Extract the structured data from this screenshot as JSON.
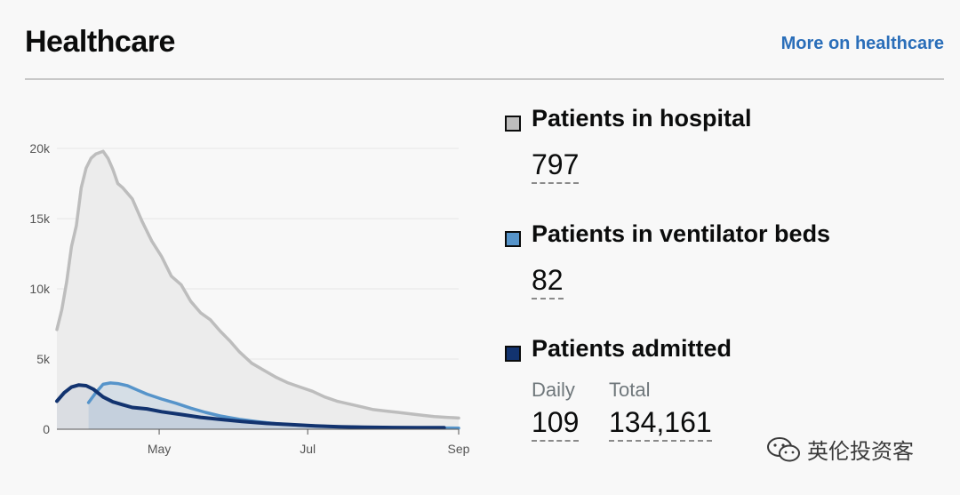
{
  "header": {
    "title": "Healthcare",
    "more_link": "More on healthcare"
  },
  "metrics": {
    "hospital": {
      "label": "Patients in hospital",
      "value": "797",
      "color": "#bdbdbd"
    },
    "ventilator": {
      "label": "Patients in ventilator beds",
      "value": "82",
      "color": "#5694ca"
    },
    "admitted": {
      "label": "Patients admitted",
      "daily_label": "Daily",
      "daily_value": "109",
      "total_label": "Total",
      "total_value": "134,161",
      "color": "#12336f"
    }
  },
  "watermark": {
    "text": "英伦投资客",
    "icon": "wechat-icon"
  },
  "chart_data": {
    "type": "area",
    "x_ticks": [
      "May",
      "Jul",
      "Sep"
    ],
    "y_ticks": [
      "0",
      "5k",
      "10k",
      "15k",
      "20k"
    ],
    "ylim": [
      0,
      20000
    ],
    "xlim": [
      "2020-03-20",
      "2020-09-01"
    ],
    "grid": true,
    "series": [
      {
        "name": "Patients in hospital",
        "color": "#bdbdbd",
        "points": [
          [
            "2020-03-20",
            7100
          ],
          [
            "2020-03-22",
            8500
          ],
          [
            "2020-03-24",
            10500
          ],
          [
            "2020-03-26",
            13000
          ],
          [
            "2020-03-28",
            14500
          ],
          [
            "2020-03-30",
            17200
          ],
          [
            "2020-04-01",
            18600
          ],
          [
            "2020-04-03",
            19300
          ],
          [
            "2020-04-05",
            19600
          ],
          [
            "2020-04-08",
            19800
          ],
          [
            "2020-04-10",
            19300
          ],
          [
            "2020-04-12",
            18500
          ],
          [
            "2020-04-14",
            17500
          ],
          [
            "2020-04-16",
            17200
          ],
          [
            "2020-04-20",
            16400
          ],
          [
            "2020-04-24",
            14800
          ],
          [
            "2020-04-28",
            13400
          ],
          [
            "2020-05-02",
            12300
          ],
          [
            "2020-05-06",
            10900
          ],
          [
            "2020-05-10",
            10300
          ],
          [
            "2020-05-14",
            9100
          ],
          [
            "2020-05-18",
            8300
          ],
          [
            "2020-05-22",
            7800
          ],
          [
            "2020-05-26",
            7000
          ],
          [
            "2020-05-30",
            6300
          ],
          [
            "2020-06-03",
            5500
          ],
          [
            "2020-06-08",
            4700
          ],
          [
            "2020-06-13",
            4200
          ],
          [
            "2020-06-18",
            3700
          ],
          [
            "2020-06-23",
            3300
          ],
          [
            "2020-06-28",
            3000
          ],
          [
            "2020-07-03",
            2700
          ],
          [
            "2020-07-08",
            2300
          ],
          [
            "2020-07-13",
            2000
          ],
          [
            "2020-07-18",
            1800
          ],
          [
            "2020-07-23",
            1600
          ],
          [
            "2020-07-28",
            1400
          ],
          [
            "2020-08-02",
            1300
          ],
          [
            "2020-08-07",
            1200
          ],
          [
            "2020-08-12",
            1100
          ],
          [
            "2020-08-17",
            1000
          ],
          [
            "2020-08-22",
            900
          ],
          [
            "2020-08-27",
            850
          ],
          [
            "2020-09-01",
            797
          ]
        ]
      },
      {
        "name": "Patients in ventilator beds",
        "color": "#5694ca",
        "points": [
          [
            "2020-04-02",
            1900
          ],
          [
            "2020-04-05",
            2600
          ],
          [
            "2020-04-08",
            3200
          ],
          [
            "2020-04-11",
            3300
          ],
          [
            "2020-04-14",
            3250
          ],
          [
            "2020-04-18",
            3100
          ],
          [
            "2020-04-22",
            2800
          ],
          [
            "2020-04-26",
            2500
          ],
          [
            "2020-05-02",
            2150
          ],
          [
            "2020-05-08",
            1850
          ],
          [
            "2020-05-14",
            1500
          ],
          [
            "2020-05-20",
            1200
          ],
          [
            "2020-05-26",
            950
          ],
          [
            "2020-06-03",
            700
          ],
          [
            "2020-06-10",
            550
          ],
          [
            "2020-06-18",
            400
          ],
          [
            "2020-06-26",
            300
          ],
          [
            "2020-07-05",
            230
          ],
          [
            "2020-07-15",
            170
          ],
          [
            "2020-07-25",
            130
          ],
          [
            "2020-08-05",
            110
          ],
          [
            "2020-08-15",
            95
          ],
          [
            "2020-08-25",
            88
          ],
          [
            "2020-09-01",
            82
          ]
        ]
      },
      {
        "name": "Patients admitted",
        "color": "#12336f",
        "points": [
          [
            "2020-03-20",
            2000
          ],
          [
            "2020-03-23",
            2600
          ],
          [
            "2020-03-26",
            3000
          ],
          [
            "2020-03-29",
            3150
          ],
          [
            "2020-04-01",
            3100
          ],
          [
            "2020-04-04",
            2850
          ],
          [
            "2020-04-08",
            2300
          ],
          [
            "2020-04-12",
            1950
          ],
          [
            "2020-04-16",
            1750
          ],
          [
            "2020-04-20",
            1550
          ],
          [
            "2020-04-26",
            1450
          ],
          [
            "2020-05-02",
            1250
          ],
          [
            "2020-05-10",
            1050
          ],
          [
            "2020-05-18",
            850
          ],
          [
            "2020-05-26",
            700
          ],
          [
            "2020-06-04",
            550
          ],
          [
            "2020-06-14",
            420
          ],
          [
            "2020-06-24",
            330
          ],
          [
            "2020-07-04",
            240
          ],
          [
            "2020-07-14",
            180
          ],
          [
            "2020-07-24",
            140
          ],
          [
            "2020-08-05",
            120
          ],
          [
            "2020-08-15",
            110
          ],
          [
            "2020-08-26",
            109
          ]
        ]
      }
    ]
  }
}
